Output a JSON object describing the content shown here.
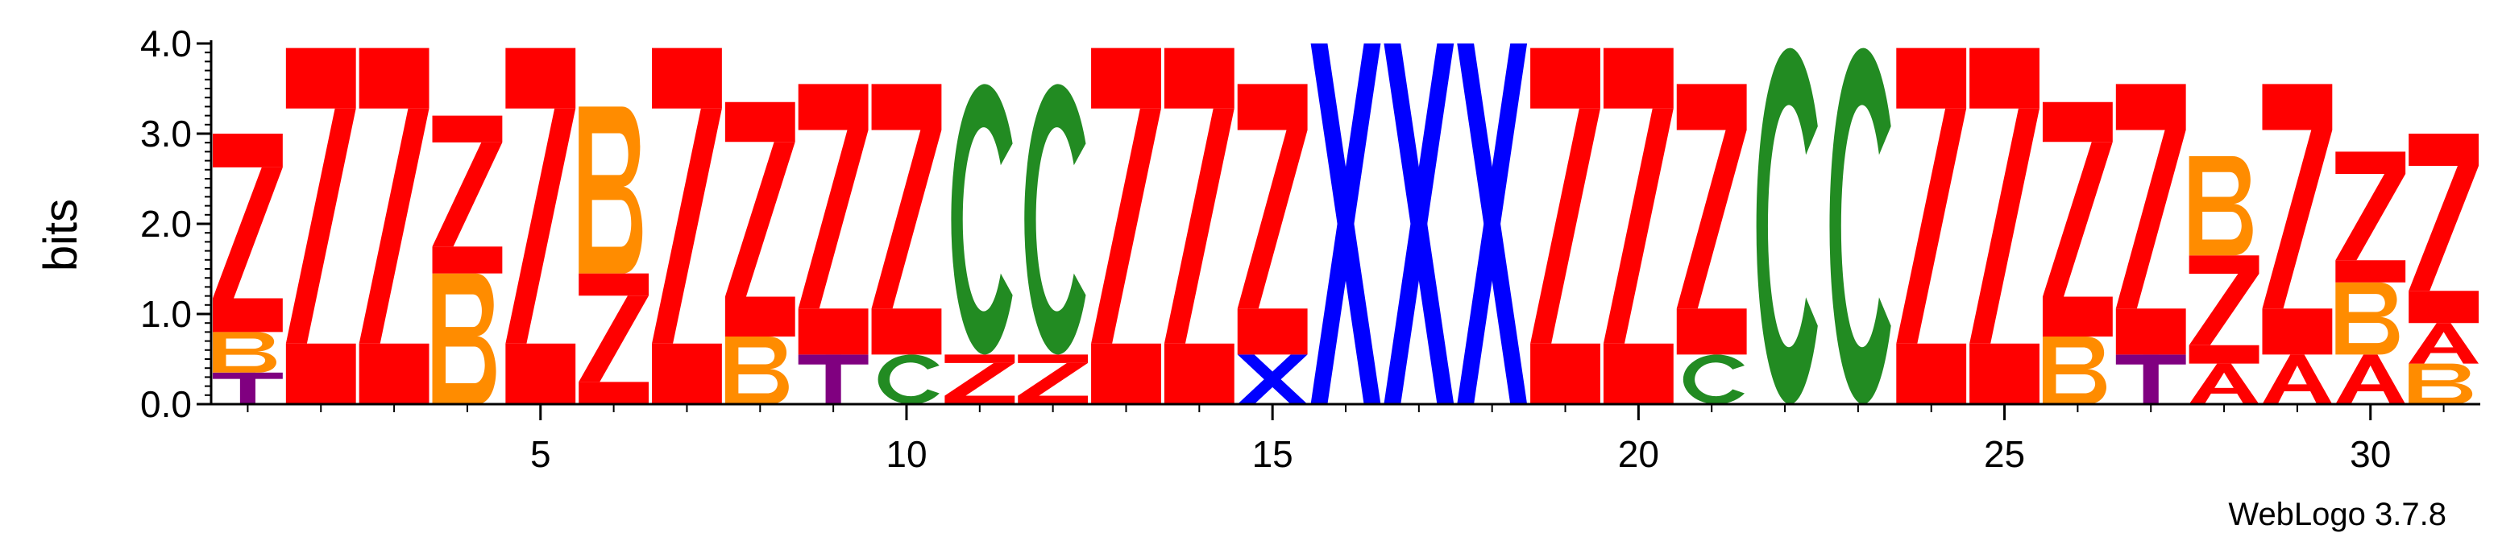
{
  "chart_data": {
    "type": "sequence_logo",
    "ylabel": "bits",
    "ylim": [
      0,
      4.0
    ],
    "yticks": [
      0.0,
      1.0,
      2.0,
      3.0,
      4.0
    ],
    "ytick_labels": [
      "0.0",
      "1.0",
      "2.0",
      "3.0",
      "4.0"
    ],
    "xlim": [
      1,
      31
    ],
    "xticks": [
      5,
      10,
      15,
      20,
      25,
      30
    ],
    "xtick_labels": [
      "5",
      "10",
      "15",
      "20",
      "25",
      "30"
    ],
    "credit": "WebLogo 3.7.8",
    "colors": {
      "Z": "#ff0000",
      "B": "#ff8c00",
      "T": "#800080",
      "C": "#228b22",
      "X": "#0000ff",
      "A": "#ff0000"
    },
    "positions": [
      {
        "pos": 1,
        "stack": [
          {
            "letter": "T",
            "bits": 0.35
          },
          {
            "letter": "B",
            "bits": 0.45
          },
          {
            "letter": "Z",
            "bits": 2.2
          }
        ]
      },
      {
        "pos": 2,
        "stack": [
          {
            "letter": "Z",
            "bits": 3.95
          }
        ]
      },
      {
        "pos": 3,
        "stack": [
          {
            "letter": "Z",
            "bits": 3.95
          }
        ]
      },
      {
        "pos": 4,
        "stack": [
          {
            "letter": "B",
            "bits": 1.45
          },
          {
            "letter": "Z",
            "bits": 1.75
          }
        ]
      },
      {
        "pos": 5,
        "stack": [
          {
            "letter": "Z",
            "bits": 3.95
          }
        ]
      },
      {
        "pos": 6,
        "stack": [
          {
            "letter": "Z",
            "bits": 1.45
          },
          {
            "letter": "B",
            "bits": 1.85
          }
        ]
      },
      {
        "pos": 7,
        "stack": [
          {
            "letter": "Z",
            "bits": 3.95
          }
        ]
      },
      {
        "pos": 8,
        "stack": [
          {
            "letter": "B",
            "bits": 0.75
          },
          {
            "letter": "Z",
            "bits": 2.6
          }
        ]
      },
      {
        "pos": 9,
        "stack": [
          {
            "letter": "T",
            "bits": 0.55
          },
          {
            "letter": "Z",
            "bits": 3.0
          }
        ]
      },
      {
        "pos": 10,
        "stack": [
          {
            "letter": "C",
            "bits": 0.55
          },
          {
            "letter": "Z",
            "bits": 3.0
          }
        ]
      },
      {
        "pos": 11,
        "stack": [
          {
            "letter": "Z",
            "bits": 0.55
          },
          {
            "letter": "C",
            "bits": 3.0
          }
        ]
      },
      {
        "pos": 12,
        "stack": [
          {
            "letter": "Z",
            "bits": 0.55
          },
          {
            "letter": "C",
            "bits": 3.0
          }
        ]
      },
      {
        "pos": 13,
        "stack": [
          {
            "letter": "Z",
            "bits": 3.95
          }
        ]
      },
      {
        "pos": 14,
        "stack": [
          {
            "letter": "Z",
            "bits": 3.95
          }
        ]
      },
      {
        "pos": 15,
        "stack": [
          {
            "letter": "X",
            "bits": 0.55
          },
          {
            "letter": "Z",
            "bits": 3.0
          }
        ]
      },
      {
        "pos": 16,
        "stack": [
          {
            "letter": "X",
            "bits": 4.0
          }
        ]
      },
      {
        "pos": 17,
        "stack": [
          {
            "letter": "X",
            "bits": 4.0
          }
        ]
      },
      {
        "pos": 18,
        "stack": [
          {
            "letter": "X",
            "bits": 4.0
          }
        ]
      },
      {
        "pos": 19,
        "stack": [
          {
            "letter": "Z",
            "bits": 3.95
          }
        ]
      },
      {
        "pos": 20,
        "stack": [
          {
            "letter": "Z",
            "bits": 3.95
          }
        ]
      },
      {
        "pos": 21,
        "stack": [
          {
            "letter": "C",
            "bits": 0.55
          },
          {
            "letter": "Z",
            "bits": 3.0
          }
        ]
      },
      {
        "pos": 22,
        "stack": [
          {
            "letter": "C",
            "bits": 3.95
          }
        ]
      },
      {
        "pos": 23,
        "stack": [
          {
            "letter": "C",
            "bits": 3.95
          }
        ]
      },
      {
        "pos": 24,
        "stack": [
          {
            "letter": "Z",
            "bits": 3.95
          }
        ]
      },
      {
        "pos": 25,
        "stack": [
          {
            "letter": "Z",
            "bits": 3.95
          }
        ]
      },
      {
        "pos": 26,
        "stack": [
          {
            "letter": "B",
            "bits": 0.75
          },
          {
            "letter": "Z",
            "bits": 2.6
          }
        ]
      },
      {
        "pos": 27,
        "stack": [
          {
            "letter": "T",
            "bits": 0.55
          },
          {
            "letter": "Z",
            "bits": 3.0
          }
        ]
      },
      {
        "pos": 28,
        "stack": [
          {
            "letter": "A",
            "bits": 0.45
          },
          {
            "letter": "Z",
            "bits": 1.2
          },
          {
            "letter": "B",
            "bits": 1.1
          }
        ]
      },
      {
        "pos": 29,
        "stack": [
          {
            "letter": "A",
            "bits": 0.55
          },
          {
            "letter": "Z",
            "bits": 3.0
          }
        ]
      },
      {
        "pos": 30,
        "stack": [
          {
            "letter": "A",
            "bits": 0.55
          },
          {
            "letter": "B",
            "bits": 0.8
          },
          {
            "letter": "Z",
            "bits": 1.45
          }
        ]
      },
      {
        "pos": 31,
        "stack": [
          {
            "letter": "B",
            "bits": 0.45
          },
          {
            "letter": "A",
            "bits": 0.45
          },
          {
            "letter": "Z",
            "bits": 2.1
          }
        ]
      }
    ]
  }
}
